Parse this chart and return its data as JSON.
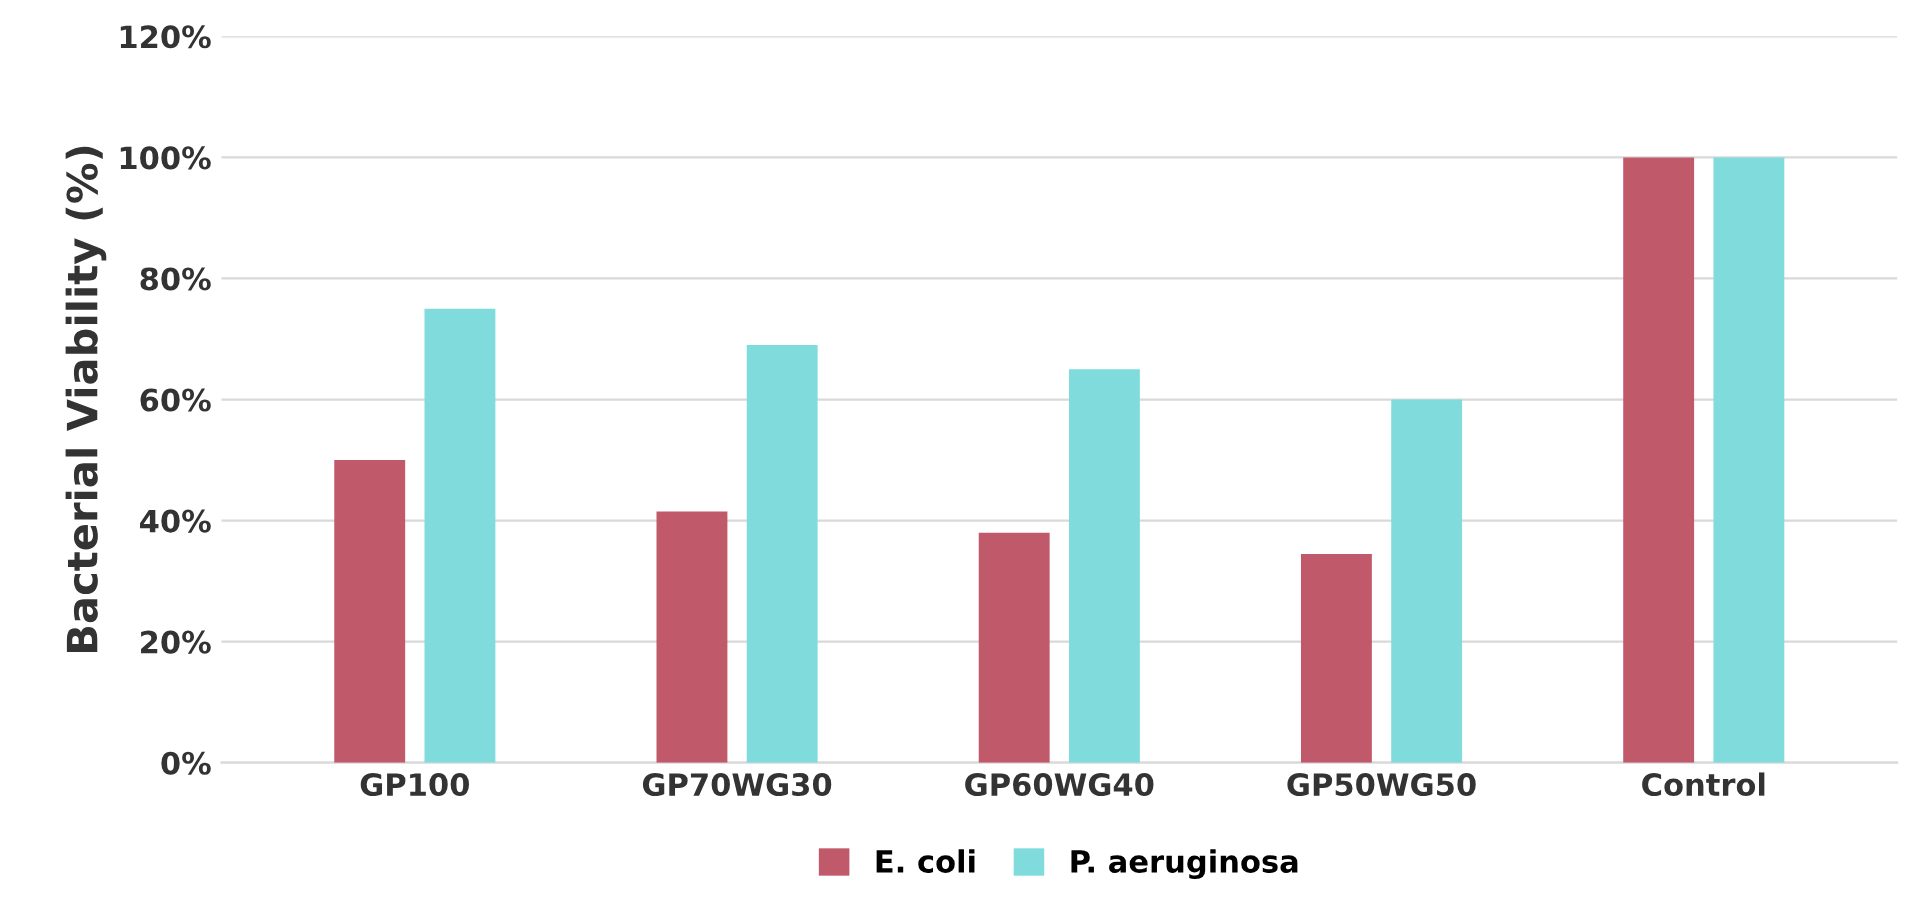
{
  "chart_data": {
    "type": "bar",
    "ylabel": "Bacterial Viability (%)",
    "categories": [
      "GP100",
      "GP70WG30",
      "GP60WG40",
      "GP50WG50",
      "Control"
    ],
    "series": [
      {
        "name": "E. coli",
        "color": "#c05a6a",
        "values": [
          50,
          41.5,
          38,
          34.5,
          100
        ]
      },
      {
        "name": "P. aeruginosa",
        "color": "#80dcdc",
        "values": [
          75,
          69,
          65,
          60,
          100
        ]
      }
    ],
    "ylim": [
      0,
      120
    ],
    "yticks": [
      {
        "value": 0,
        "label": "0%"
      },
      {
        "value": 20,
        "label": "20%"
      },
      {
        "value": 40,
        "label": "40%"
      },
      {
        "value": 60,
        "label": "60%"
      },
      {
        "value": 80,
        "label": "80%"
      },
      {
        "value": 100,
        "label": "100%"
      },
      {
        "value": 120,
        "label": "120%"
      }
    ],
    "grid": "y",
    "legend": "bottom"
  }
}
